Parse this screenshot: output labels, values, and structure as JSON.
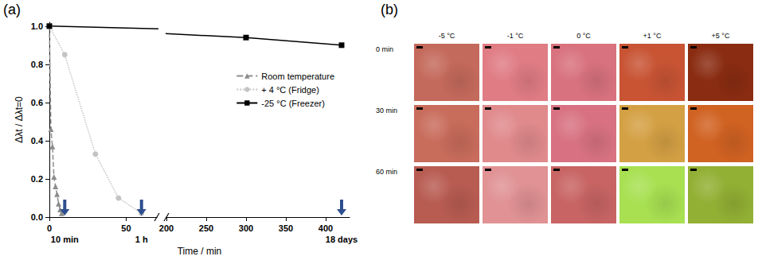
{
  "chart_data": {
    "type": "line",
    "panel": "(a)",
    "x_label": "Time / min",
    "y_label": "Δλt / Δλt=0",
    "xlim": [
      [
        0,
        70
      ],
      [
        200,
        430
      ]
    ],
    "xticks": [
      0,
      50,
      200,
      250,
      300,
      350,
      400
    ],
    "ylim": [
      0,
      1.02
    ],
    "yticks": [
      {
        "value": 0,
        "label": "0.0"
      },
      0.2,
      0.4,
      0.6,
      0.8,
      {
        "value": 1,
        "label": "1.0"
      }
    ],
    "grid": false,
    "legend": "right",
    "series": [
      {
        "name": "Room temperature",
        "color": "#8c8c8c",
        "marker": "triangle",
        "line_style": "dashed",
        "x": [
          0,
          1,
          2,
          3,
          4,
          5,
          6,
          7,
          8
        ],
        "values": [
          1.0,
          0.46,
          0.37,
          0.21,
          0.16,
          0.12,
          0.07,
          0.04,
          0.02
        ]
      },
      {
        "name": "+ 4 °C (Fridge)",
        "color": "#c4c4c4",
        "marker": "circle",
        "line_style": "dotted",
        "x": [
          0,
          10,
          30,
          45,
          60
        ],
        "values": [
          1.0,
          0.85,
          0.33,
          0.1,
          0.02
        ]
      },
      {
        "name": "-25 °C (Freezer)",
        "color": "#000000",
        "marker": "square",
        "line_style": "solid",
        "x": [
          0,
          300,
          420
        ],
        "values": [
          1.0,
          0.94,
          0.9
        ]
      }
    ],
    "annotations": [
      {
        "text": "10 min",
        "x": 10
      },
      {
        "text": "1 h",
        "x": 60
      },
      {
        "text": "18 days",
        "x": 420
      }
    ]
  },
  "panel_b": {
    "label": "(b)",
    "columns": [
      "-5 °C",
      "-1 °C",
      "0 °C",
      "+1 °C",
      "+5 °C"
    ],
    "rows": [
      "0 min",
      "30 min",
      "60 min"
    ],
    "colors": [
      [
        "#c46a5c",
        "#e07c84",
        "#d8727e",
        "#c85434",
        "#8a2c12"
      ],
      [
        "#c86c5c",
        "#e08a8c",
        "#d87282",
        "#d4a044",
        "#d06222"
      ],
      [
        "#b85c52",
        "#e09294",
        "#c86464",
        "#a8e052",
        "#92b034"
      ]
    ]
  }
}
